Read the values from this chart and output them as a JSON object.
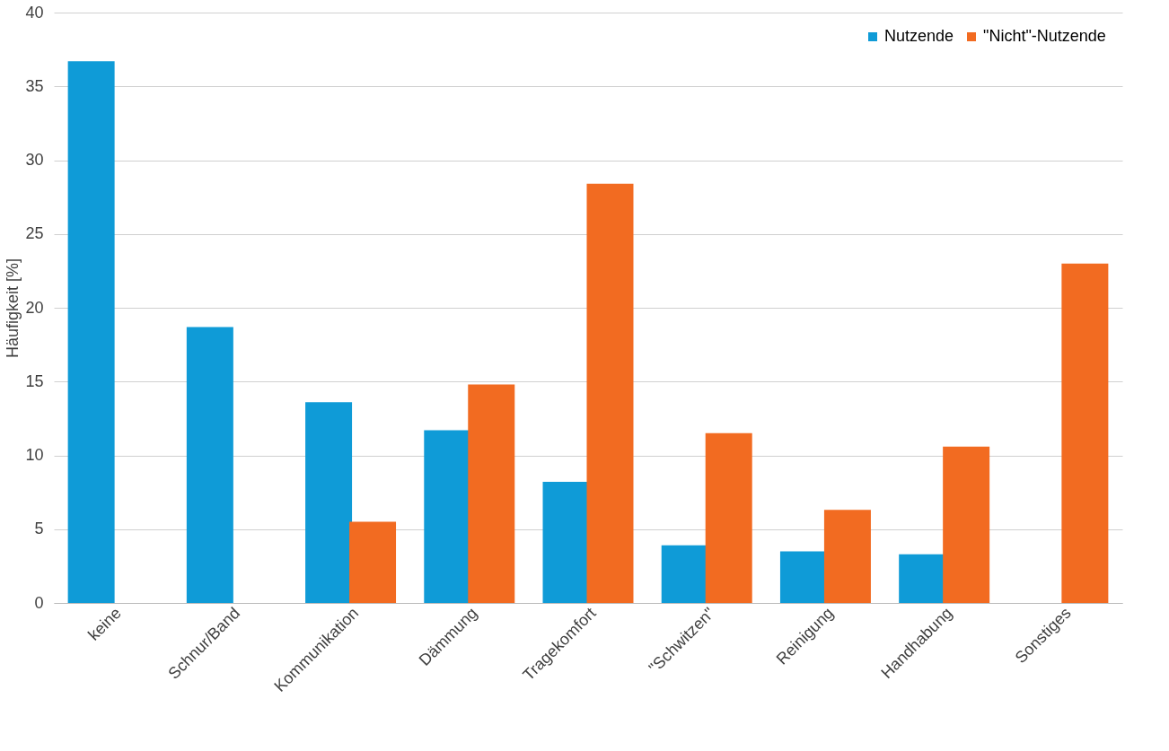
{
  "chart_data": {
    "type": "bar",
    "ylabel": "Häufigkeit [%]",
    "categories": [
      "keine",
      "Schnur/Band",
      "Kommunikation",
      "Dämmung",
      "Tragekomfort",
      "\"Schwitzen\"",
      "Reinigung",
      "Handhabung",
      "Sonstiges"
    ],
    "series": [
      {
        "name": "Nutzende",
        "color": "#0f9bd7",
        "values": [
          36.7,
          18.7,
          13.6,
          11.7,
          8.2,
          3.9,
          3.5,
          3.3,
          0
        ]
      },
      {
        "name": "\"Nicht\"-Nutzende",
        "color": "#f26b21",
        "values": [
          0,
          0,
          5.5,
          14.8,
          28.4,
          11.5,
          6.3,
          10.6,
          23.0
        ]
      }
    ],
    "ylim": [
      0,
      40
    ],
    "yticks": [
      0,
      5,
      10,
      15,
      20,
      25,
      30,
      35,
      40
    ],
    "grid": "y",
    "legend": "top right"
  }
}
